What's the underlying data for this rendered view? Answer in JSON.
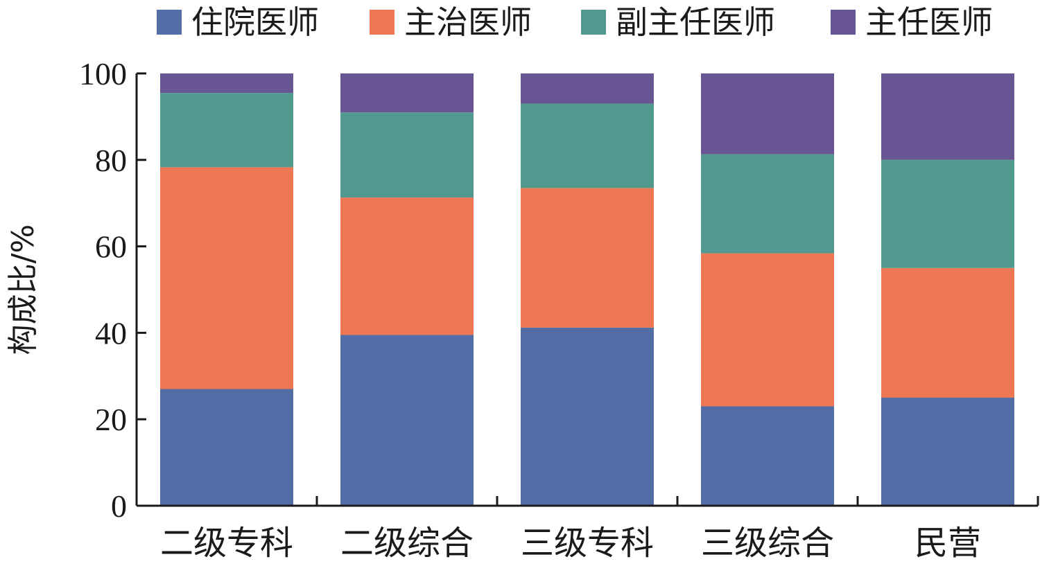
{
  "chart_data": {
    "type": "bar",
    "stacked": true,
    "ylabel": "构成比/%",
    "xlabel": "",
    "ylim": [
      0,
      100
    ],
    "yticks": [
      0,
      20,
      40,
      60,
      80,
      100
    ],
    "legend_position": "top",
    "categories": [
      "二级专科",
      "二级综合",
      "三级专科",
      "三级综合",
      "民营"
    ],
    "series": [
      {
        "name": "住院医师",
        "color": "#536da6",
        "values": [
          27.0,
          39.5,
          41.2,
          23.0,
          25.0
        ]
      },
      {
        "name": "主治医师",
        "color": "#ee7854",
        "values": [
          51.3,
          31.8,
          32.3,
          35.4,
          30.0
        ]
      },
      {
        "name": "副主任医师",
        "color": "#529a8f",
        "values": [
          17.2,
          19.7,
          19.5,
          22.9,
          25.0
        ]
      },
      {
        "name": "主任医师",
        "color": "#675594",
        "values": [
          4.5,
          9.0,
          7.0,
          18.7,
          20.0
        ]
      }
    ]
  }
}
